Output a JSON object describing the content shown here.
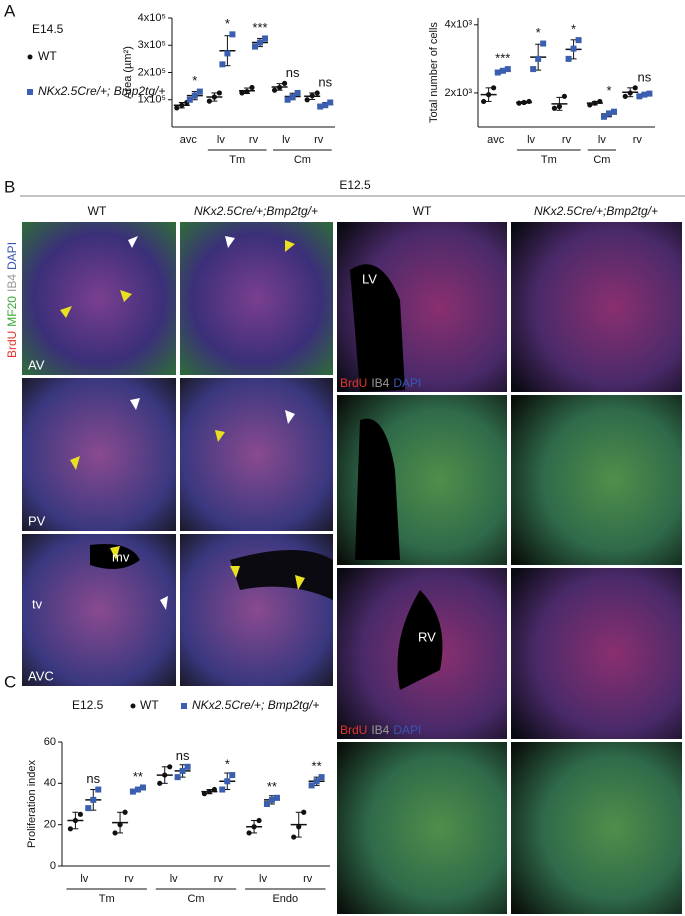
{
  "figure": {
    "panel_labels": [
      "A",
      "B",
      "C"
    ],
    "legend_a": {
      "stage": "E14.5"
    },
    "panel_b": {
      "stage": "E12.5",
      "columns": [
        "WT",
        "NKx2.5Cre/+;Bmp2tg/+",
        "WT",
        "NKx2.5Cre/+;Bmp2tg/+"
      ],
      "stains_left": [
        {
          "text": "BrdU",
          "color": "#e0362c"
        },
        {
          "text": "MF20",
          "color": "#3aa635"
        },
        {
          "text": "IB4",
          "color": "#9a9a9a"
        },
        {
          "text": "DAPI",
          "color": "#3a55b4"
        }
      ],
      "stains_right": [
        {
          "text": "BrdU",
          "color": "#e0362c"
        },
        {
          "text": "IB4",
          "color": "#9a9a9a"
        },
        {
          "text": "DAPI",
          "color": "#3a55b4"
        }
      ],
      "region_labels": [
        "AV",
        "PV",
        "AVC"
      ],
      "structure_labels": [
        "mv",
        "tv",
        "LV",
        "RV"
      ]
    },
    "legend_c": {
      "stage": "E12.5"
    }
  },
  "chart_data": [
    {
      "type": "dot",
      "y_label": "Area (µm²)",
      "categories": [
        "avc",
        "lv",
        "rv",
        "lv",
        "rv"
      ],
      "groups": [
        null,
        "Tm",
        "Tm",
        "Cm",
        "Cm"
      ],
      "ylim": [
        0,
        400000
      ],
      "yticks": [
        {
          "value": 100000,
          "label": "1x10⁵"
        },
        {
          "value": 200000,
          "label": "2x10⁵"
        },
        {
          "value": 300000,
          "label": "3x10⁵"
        },
        {
          "value": 400000,
          "label": "4x10⁵"
        }
      ],
      "significance": [
        "*",
        "*",
        "***",
        "ns",
        "ns"
      ],
      "series": [
        {
          "name": "WT",
          "color": "#111111",
          "values": [
            80000,
            110000,
            133000,
            147000,
            113000
          ],
          "errors": [
            10000,
            15000,
            10000,
            12000,
            12000
          ],
          "points": [
            [
              70000,
              80000,
              90000
            ],
            [
              95000,
              110000,
              125000
            ],
            [
              125000,
              130000,
              145000
            ],
            [
              135000,
              145000,
              160000
            ],
            [
              100000,
              115000,
              125000
            ]
          ]
        },
        {
          "name": "NKx2.5Cre/+; Bmp2tg/+",
          "color": "#3a5eb0",
          "values": [
            115000,
            280000,
            310000,
            112000,
            82000
          ],
          "errors": [
            15000,
            55000,
            15000,
            12000,
            8000
          ],
          "points": [
            [
              100000,
              115000,
              130000
            ],
            [
              230000,
              270000,
              340000
            ],
            [
              295000,
              310000,
              325000
            ],
            [
              100000,
              110000,
              125000
            ],
            [
              75000,
              80000,
              90000
            ]
          ]
        }
      ]
    },
    {
      "type": "dot",
      "y_label": "Total number of cells",
      "categories": [
        "avc",
        "lv",
        "rv",
        "lv",
        "rv"
      ],
      "groups": [
        null,
        "Tm",
        "Tm",
        "Cm",
        null
      ],
      "ylim": [
        1000,
        4200
      ],
      "yticks": [
        {
          "value": 2000,
          "label": "2x10³"
        },
        {
          "value": 4000,
          "label": "4x10³"
        }
      ],
      "significance": [
        "***",
        "*",
        "*",
        "*",
        "ns"
      ],
      "series": [
        {
          "name": "WT",
          "color": "#111111",
          "values": [
            1950,
            1720,
            1680,
            1700,
            2020
          ],
          "errors": [
            200,
            30,
            190,
            50,
            130
          ],
          "points": [
            [
              1750,
              1950,
              2150
            ],
            [
              1700,
              1720,
              1750
            ],
            [
              1550,
              1600,
              1900
            ],
            [
              1650,
              1700,
              1750
            ],
            [
              1900,
              2000,
              2150
            ]
          ]
        },
        {
          "name": "NKx2.5Cre/+; Bmp2tg/+",
          "color": "#3a5eb0",
          "values": [
            2650,
            3050,
            3280,
            1380,
            1940
          ],
          "errors": [
            50,
            380,
            280,
            80,
            40
          ],
          "points": [
            [
              2600,
              2650,
              2700
            ],
            [
              2700,
              3000,
              3450
            ],
            [
              3000,
              3300,
              3550
            ],
            [
              1300,
              1400,
              1450
            ],
            [
              1900,
              1950,
              1980
            ]
          ]
        }
      ]
    },
    {
      "type": "dot",
      "y_label": "Proliferation index",
      "categories": [
        "lv",
        "rv",
        "lv",
        "rv",
        "lv",
        "rv"
      ],
      "groups": [
        "Tm",
        "Tm",
        "Cm",
        "Cm",
        "Endo",
        "Endo"
      ],
      "ylim": [
        0,
        60
      ],
      "yticks": [
        0,
        20,
        40,
        60
      ],
      "significance": [
        "ns",
        "**",
        "ns",
        "*",
        "**",
        "**"
      ],
      "series": [
        {
          "name": "WT",
          "color": "#111111",
          "values": [
            22,
            21,
            44,
            36,
            19,
            20
          ],
          "errors": [
            4,
            5,
            4,
            1,
            3,
            6
          ],
          "points": [
            [
              18,
              22,
              25
            ],
            [
              16,
              20,
              26
            ],
            [
              40,
              44,
              48
            ],
            [
              35,
              36,
              37
            ],
            [
              16,
              19,
              22
            ],
            [
              14,
              19,
              26
            ]
          ]
        },
        {
          "name": "NKx2.5Cre/+; Bmp2tg/+",
          "color": "#3a5eb0",
          "values": [
            32,
            37,
            46,
            41,
            32,
            41
          ],
          "errors": [
            5,
            1,
            3,
            4,
            2,
            2
          ],
          "points": [
            [
              28,
              32,
              37
            ],
            [
              36,
              37,
              38
            ],
            [
              43,
              46,
              48
            ],
            [
              37,
              41,
              44
            ],
            [
              30,
              32,
              33
            ],
            [
              39,
              41,
              43
            ]
          ]
        }
      ]
    }
  ]
}
